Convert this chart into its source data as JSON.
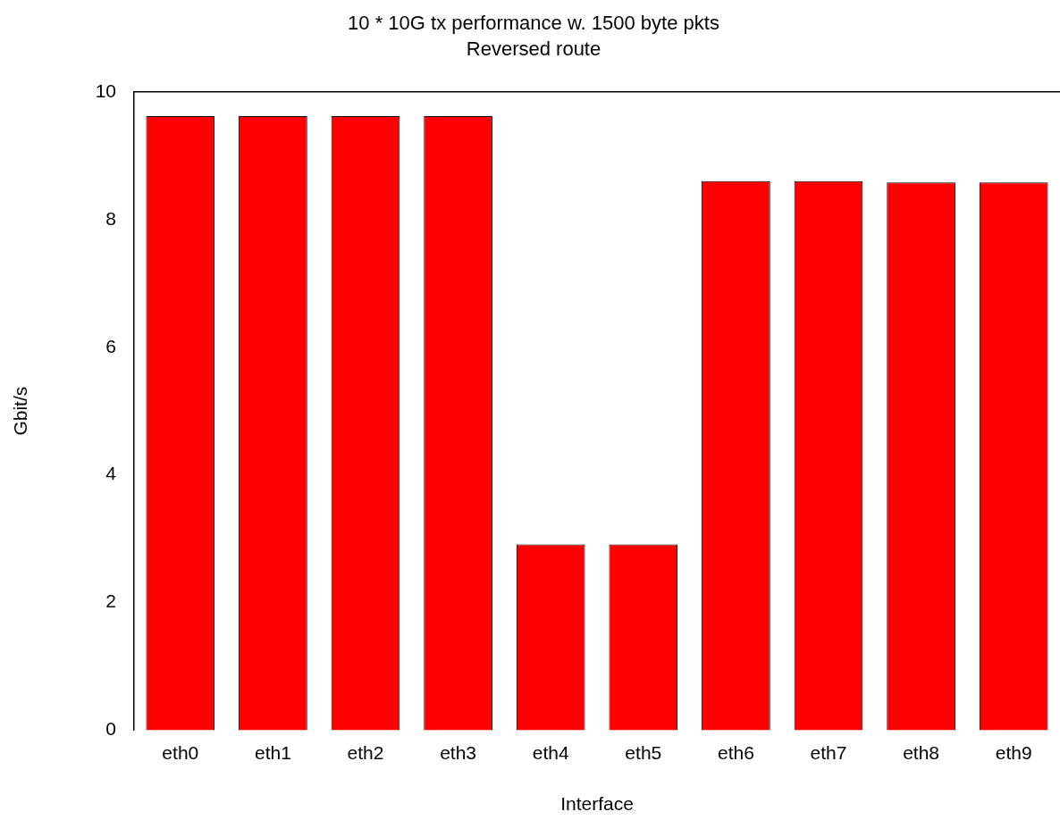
{
  "chart_data": {
    "type": "bar",
    "title": "10 * 10G tx performance w. 1500 byte pkts",
    "subtitle": "Reversed route",
    "xlabel": "Interface",
    "ylabel": "Gbit/s",
    "categories": [
      "eth0",
      "eth1",
      "eth2",
      "eth3",
      "eth4",
      "eth5",
      "eth6",
      "eth7",
      "eth8",
      "eth9"
    ],
    "values": [
      9.62,
      9.62,
      9.62,
      9.62,
      2.91,
      2.91,
      8.6,
      8.6,
      8.58,
      8.58
    ],
    "color": "#ff0000",
    "ylim": [
      0,
      10
    ],
    "yticks": [
      0,
      2,
      4,
      6,
      8,
      10
    ],
    "grid": false,
    "legend": false
  }
}
